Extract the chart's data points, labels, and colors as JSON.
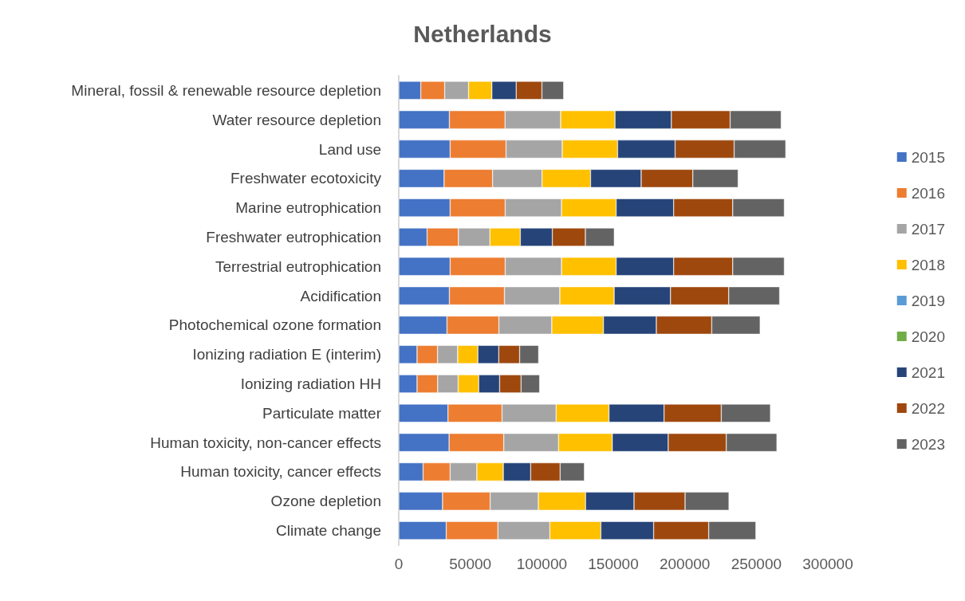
{
  "chart_data": {
    "type": "bar",
    "title": "Netherlands",
    "orientation": "horizontal",
    "stacked": true,
    "legend": "right",
    "grid": false,
    "categories": [
      "Mineral, fossil & renewable resource depletion",
      "Water resource depletion",
      "Land use",
      "Freshwater ecotoxicity",
      "Marine eutrophication",
      "Freshwater eutrophication",
      "Terrestrial eutrophication",
      "Acidification",
      "Photochemical ozone formation",
      "Ionizing radiation E (interim)",
      "Ionizing radiation HH",
      "Particulate matter",
      "Human toxicity, non-cancer effects",
      "Human toxicity, cancer effects",
      "Ozone depletion",
      "Climate change"
    ],
    "xlim": [
      0,
      300000
    ],
    "xticks": [
      0,
      50000,
      100000,
      150000,
      200000,
      250000,
      300000
    ],
    "series": [
      {
        "name": "2015",
        "color": "#4472c4",
        "values": [
          15400,
          35400,
          35900,
          31700,
          35900,
          19800,
          35900,
          35400,
          33700,
          12800,
          12800,
          34400,
          35200,
          17000,
          30600,
          33200
        ]
      },
      {
        "name": "2016",
        "color": "#ed7d31",
        "values": [
          16700,
          38900,
          39100,
          33900,
          38500,
          21900,
          38500,
          38500,
          36300,
          14300,
          14400,
          37800,
          38200,
          18900,
          33300,
          36100
        ]
      },
      {
        "name": "2017",
        "color": "#a5a5a5",
        "values": [
          16700,
          38900,
          39300,
          34600,
          39400,
          22000,
          39400,
          38700,
          37000,
          14100,
          14300,
          37800,
          38300,
          18700,
          33700,
          36300
        ]
      },
      {
        "name": "2018",
        "color": "#ffc000",
        "values": [
          16300,
          38000,
          38700,
          33900,
          38200,
          21300,
          38200,
          38000,
          36100,
          14100,
          14400,
          37000,
          37600,
          18500,
          33000,
          35700
        ]
      },
      {
        "name": "2019",
        "color": "#5b9bd5",
        "values": [
          null,
          null,
          null,
          null,
          null,
          null,
          null,
          null,
          null,
          null,
          null,
          null,
          null,
          null,
          null,
          null
        ]
      },
      {
        "name": "2020",
        "color": "#70ad47",
        "values": [
          null,
          null,
          null,
          null,
          null,
          null,
          null,
          null,
          null,
          null,
          null,
          null,
          null,
          null,
          null,
          null
        ]
      },
      {
        "name": "2021",
        "color": "#264478",
        "values": [
          17000,
          39400,
          40200,
          35400,
          40200,
          22400,
          40200,
          39400,
          37000,
          14600,
          14600,
          38500,
          39100,
          19100,
          33900,
          36900
        ]
      },
      {
        "name": "2022",
        "color": "#9e480e",
        "values": [
          18000,
          41100,
          41300,
          36100,
          41300,
          23100,
          41300,
          40700,
          38700,
          14600,
          15000,
          40000,
          40600,
          20600,
          35700,
          38500
        ]
      },
      {
        "name": "2023",
        "color": "#636363",
        "values": [
          15200,
          35700,
          36100,
          31700,
          36100,
          20200,
          36100,
          35600,
          33900,
          13300,
          13000,
          34400,
          35400,
          17000,
          30700,
          33000
        ]
      }
    ]
  }
}
